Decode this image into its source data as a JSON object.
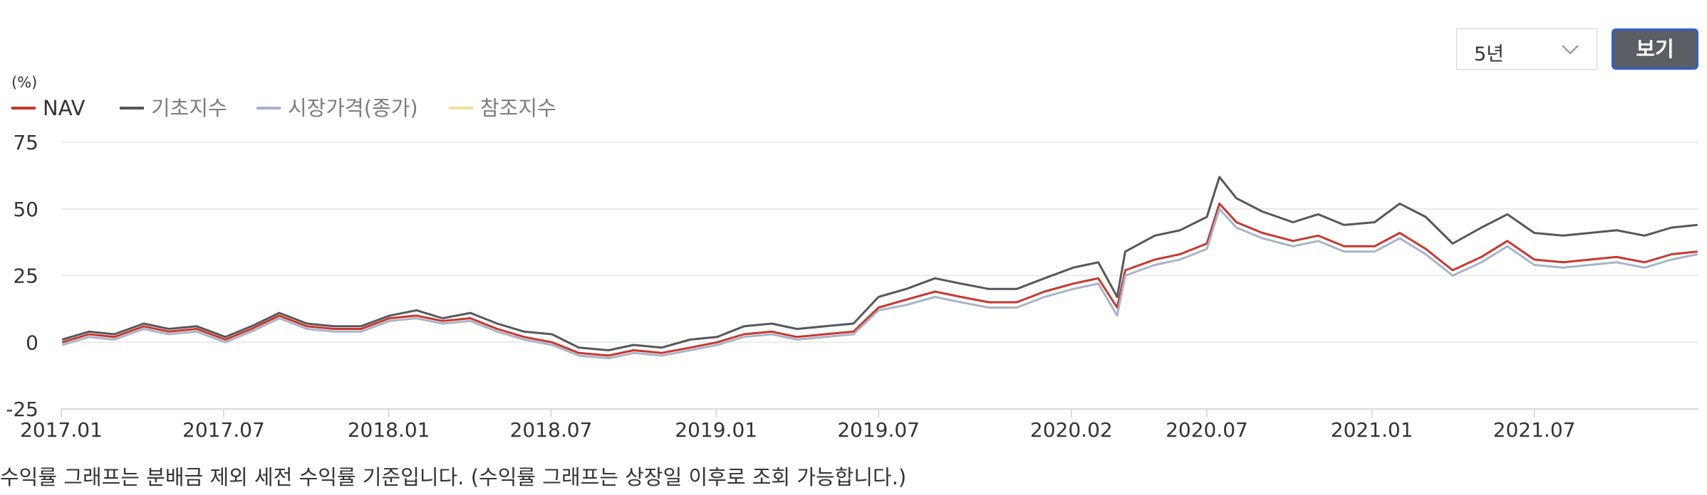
{
  "controls": {
    "period_value": "5년",
    "view_button": "보기"
  },
  "unit_label": "(%)",
  "legend": [
    {
      "label": "NAV",
      "color": "#c8372d"
    },
    {
      "label": "기초지수",
      "color": "#555759"
    },
    {
      "label": "시장가격(종가)",
      "color": "#a7b4c8"
    },
    {
      "label": "참조지수",
      "color": "#efe0a0"
    }
  ],
  "note": "수익률 그래프는 분배금 제외 세전 수익률 기준입니다. (수익률 그래프는 상장일 이후로 조회 가능합니다.)",
  "chart_data": {
    "type": "line",
    "ylabel": "(%)",
    "ylim": [
      -25,
      75
    ],
    "yticks": [
      75,
      50,
      25,
      0,
      -25
    ],
    "xlim": [
      "2017-01-01",
      "2021-12-31"
    ],
    "xticks": [
      {
        "date": "2017-01-01",
        "label": "2017.01"
      },
      {
        "date": "2017-07-01",
        "label": "2017.07"
      },
      {
        "date": "2018-01-01",
        "label": "2018.01"
      },
      {
        "date": "2018-07-01",
        "label": "2018.07"
      },
      {
        "date": "2019-01-01",
        "label": "2019.01"
      },
      {
        "date": "2019-07-01",
        "label": "2019.07"
      },
      {
        "date": "2020-02-01",
        "label": "2020.02"
      },
      {
        "date": "2020-07-01",
        "label": "2020.07"
      },
      {
        "date": "2021-01-01",
        "label": "2021.01"
      },
      {
        "date": "2021-07-01",
        "label": "2021.07"
      }
    ],
    "grid": "horizontal",
    "legend_position": "top-left",
    "x": [
      "2017-01-02",
      "2017-02-01",
      "2017-03-01",
      "2017-04-03",
      "2017-05-01",
      "2017-06-01",
      "2017-07-03",
      "2017-08-01",
      "2017-09-01",
      "2017-10-02",
      "2017-11-01",
      "2017-12-01",
      "2018-01-02",
      "2018-02-01",
      "2018-03-02",
      "2018-04-02",
      "2018-05-02",
      "2018-06-01",
      "2018-07-02",
      "2018-08-01",
      "2018-09-03",
      "2018-10-01",
      "2018-11-01",
      "2018-12-03",
      "2019-01-02",
      "2019-02-01",
      "2019-03-04",
      "2019-04-01",
      "2019-05-02",
      "2019-06-03",
      "2019-07-01",
      "2019-08-01",
      "2019-09-02",
      "2019-10-01",
      "2019-11-01",
      "2019-12-02",
      "2020-01-02",
      "2020-02-03",
      "2020-03-02",
      "2020-03-23",
      "2020-04-01",
      "2020-05-04",
      "2020-06-01",
      "2020-07-01",
      "2020-07-15",
      "2020-08-03",
      "2020-09-01",
      "2020-10-05",
      "2020-11-02",
      "2020-12-01",
      "2021-01-04",
      "2021-02-01",
      "2021-03-02",
      "2021-04-01",
      "2021-05-03",
      "2021-06-01",
      "2021-07-01",
      "2021-08-02",
      "2021-09-01",
      "2021-10-01",
      "2021-11-01",
      "2021-12-01",
      "2021-12-30"
    ],
    "series": [
      {
        "name": "기초지수",
        "color": "#555759",
        "values": [
          1,
          4,
          3,
          7,
          5,
          6,
          2,
          6,
          11,
          7,
          6,
          6,
          10,
          12,
          9,
          11,
          7,
          4,
          3,
          -2,
          -3,
          -1,
          -2,
          1,
          2,
          6,
          7,
          5,
          6,
          7,
          17,
          20,
          24,
          22,
          20,
          20,
          24,
          28,
          30,
          17,
          34,
          40,
          42,
          47,
          62,
          54,
          49,
          45,
          48,
          44,
          45,
          52,
          47,
          37,
          43,
          48,
          41,
          40,
          41,
          42,
          40,
          43,
          44
        ]
      },
      {
        "name": "NAV",
        "color": "#c8372d",
        "values": [
          0,
          3,
          2,
          6,
          4,
          5,
          1,
          5,
          10,
          6,
          5,
          5,
          9,
          10,
          8,
          9,
          5,
          2,
          0,
          -4,
          -5,
          -3,
          -4,
          -2,
          0,
          3,
          4,
          2,
          3,
          4,
          13,
          16,
          19,
          17,
          15,
          15,
          19,
          22,
          24,
          13,
          27,
          31,
          33,
          37,
          52,
          45,
          41,
          38,
          40,
          36,
          36,
          41,
          35,
          27,
          32,
          38,
          31,
          30,
          31,
          32,
          30,
          33,
          34
        ]
      },
      {
        "name": "시장가격(종가)",
        "color": "#a7b4c8",
        "values": [
          -1,
          2,
          1,
          5,
          3,
          4,
          0,
          4,
          9,
          5,
          4,
          4,
          8,
          9,
          7,
          8,
          4,
          1,
          -1,
          -5,
          -6,
          -4,
          -5,
          -3,
          -1,
          2,
          3,
          1,
          2,
          3,
          12,
          14,
          17,
          15,
          13,
          13,
          17,
          20,
          22,
          10,
          25,
          29,
          31,
          35,
          50,
          43,
          39,
          36,
          38,
          34,
          34,
          39,
          33,
          25,
          30,
          36,
          29,
          28,
          29,
          30,
          28,
          31,
          33
        ]
      }
    ]
  }
}
